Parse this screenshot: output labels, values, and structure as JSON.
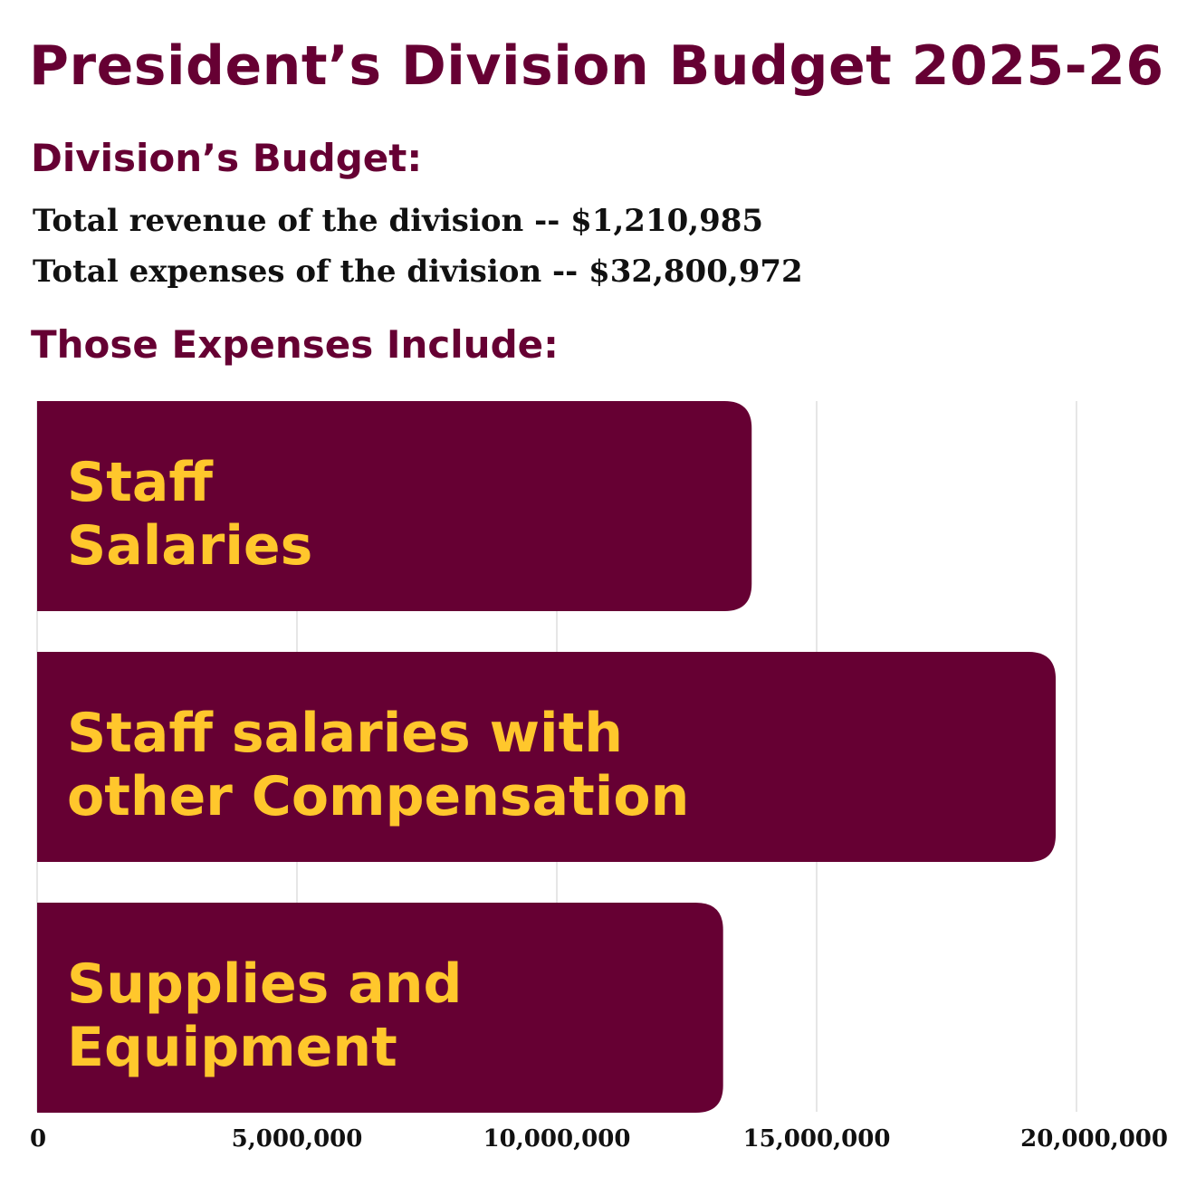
{
  "header": {
    "title": "President’s Division Budget 2025-26",
    "subtitle": "Division’s Budget:",
    "revenue_line": "Total revenue of the division -- $1,210,985",
    "expenses_line": "Total expenses of the division -- $32,800,972",
    "section_title": "Those Expenses Include:"
  },
  "colors": {
    "maroon": "#660033",
    "gold": "#FFC72C",
    "grid": "#cccccc",
    "text": "#111111"
  },
  "chart_data": {
    "type": "bar",
    "orientation": "horizontal",
    "categories": [
      [
        "Staff",
        "Salaries"
      ],
      [
        "Staff salaries with",
        "other Compensation"
      ],
      [
        "Supplies and",
        "Equipment"
      ]
    ],
    "values": [
      13750000,
      19600000,
      13200000
    ],
    "xlim": [
      0,
      20000000
    ],
    "xticks": [
      0,
      5000000,
      10000000,
      15000000,
      20000000
    ],
    "xtick_labels": [
      "0",
      "5,000,000",
      "10,000,000",
      "15,000,000",
      "20,000,000"
    ],
    "grid": true
  }
}
